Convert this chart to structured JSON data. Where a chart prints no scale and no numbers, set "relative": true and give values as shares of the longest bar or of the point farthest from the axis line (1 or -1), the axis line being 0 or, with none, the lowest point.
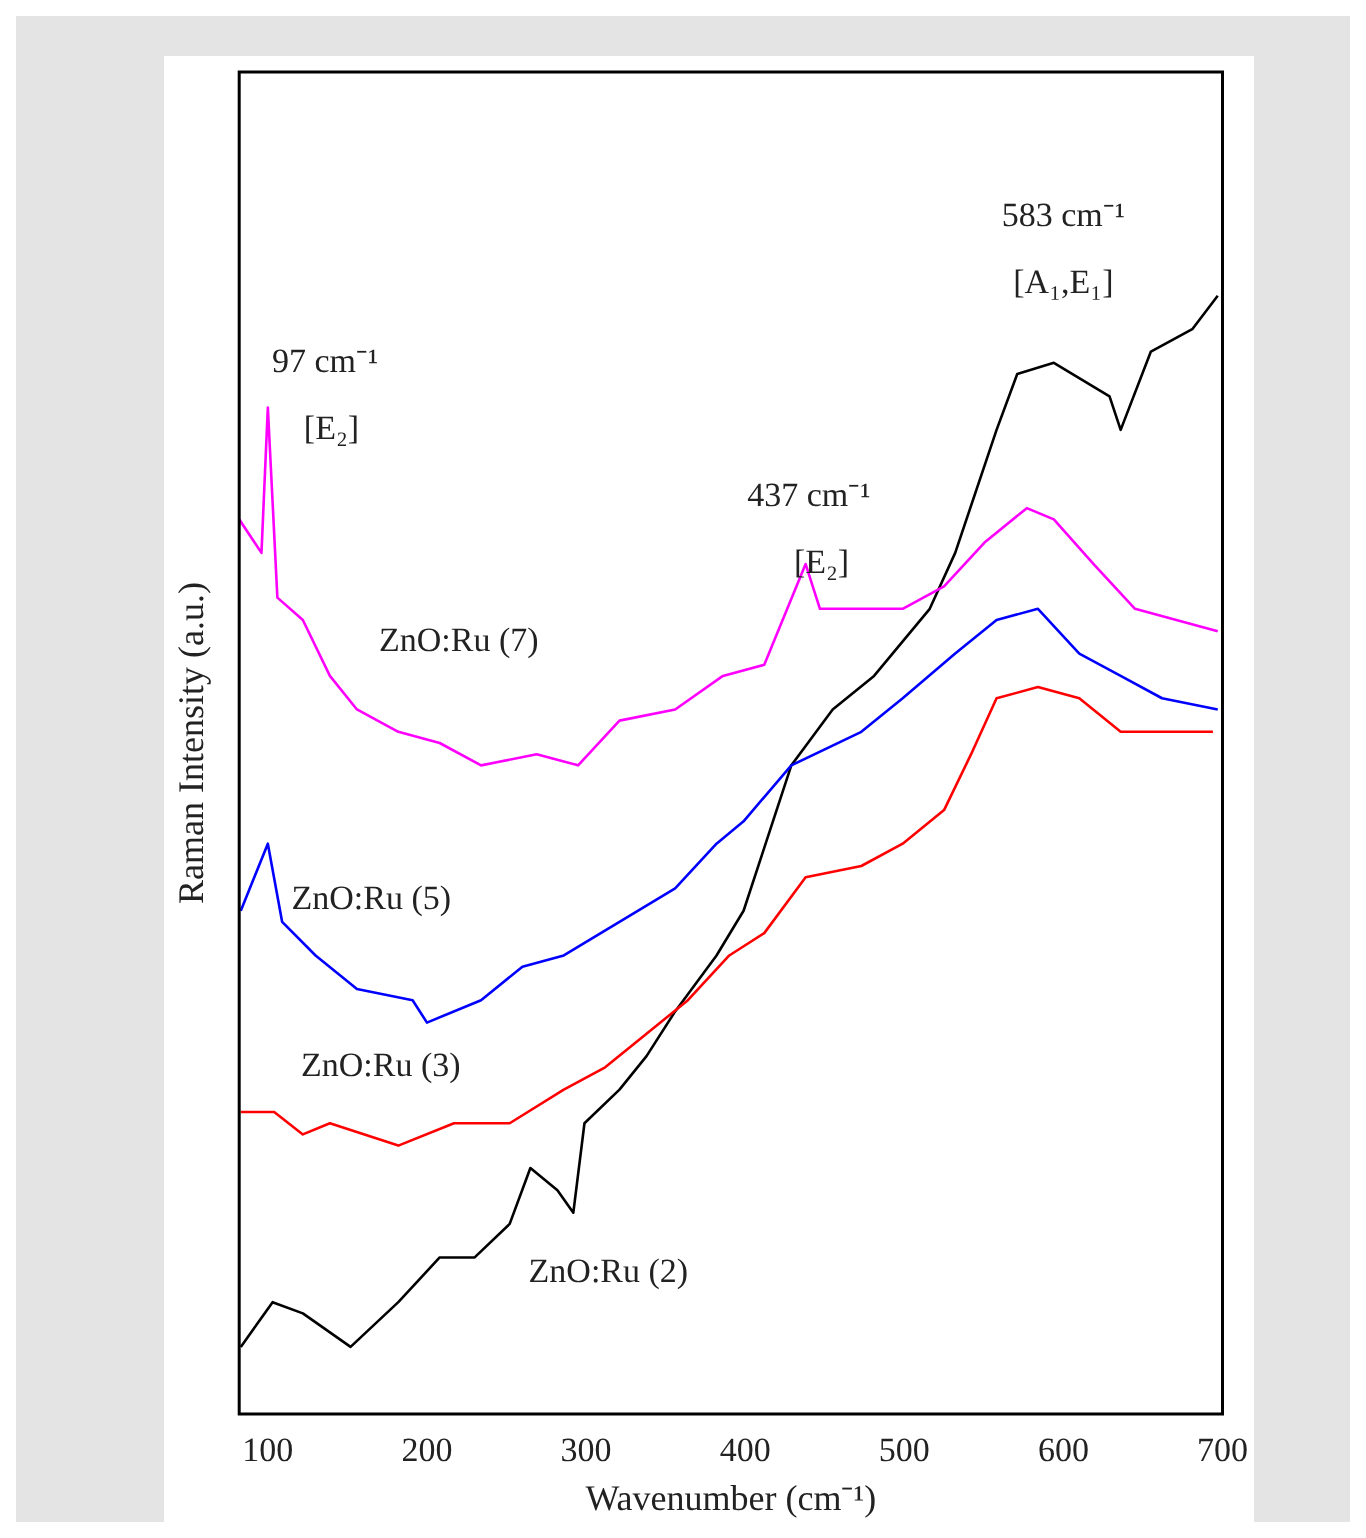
{
  "chart_data": {
    "type": "line",
    "relative": true,
    "xlabel": "Wavenumber (cm⁻¹)",
    "ylabel": "Raman Intensity (a.u.)",
    "xlim": [
      82,
      700
    ],
    "xticks": [
      100,
      200,
      300,
      400,
      500,
      600,
      700
    ],
    "grid": false,
    "legend": false,
    "marker": "none",
    "line_style": "solid",
    "series": [
      {
        "name": "ZnO:Ru (7)",
        "color": "#ff00ff",
        "x": [
          82,
          96,
          100,
          106,
          122,
          139,
          156,
          182,
          208,
          234,
          269,
          295,
          321,
          356,
          386,
          412,
          438,
          447,
          473,
          499,
          525,
          551,
          577,
          594,
          619,
          645,
          671,
          697
        ],
        "values": [
          0.8,
          0.77,
          0.9,
          0.73,
          0.71,
          0.66,
          0.63,
          0.61,
          0.6,
          0.58,
          0.59,
          0.58,
          0.62,
          0.63,
          0.66,
          0.67,
          0.76,
          0.72,
          0.72,
          0.72,
          0.74,
          0.78,
          0.81,
          0.8,
          0.76,
          0.72,
          0.71,
          0.7
        ]
      },
      {
        "name": "ZnO:Ru (5)",
        "color": "#0000ff",
        "x": [
          83,
          100,
          109,
          130,
          156,
          191,
          200,
          234,
          260,
          286,
          321,
          356,
          382,
          399,
          429,
          473,
          499,
          532,
          558,
          584,
          610,
          636,
          662,
          697
        ],
        "values": [
          0.45,
          0.51,
          0.44,
          0.41,
          0.38,
          0.37,
          0.35,
          0.37,
          0.4,
          0.41,
          0.44,
          0.47,
          0.51,
          0.53,
          0.58,
          0.61,
          0.64,
          0.68,
          0.71,
          0.72,
          0.68,
          0.66,
          0.64,
          0.63
        ]
      },
      {
        "name": "ZnO:Ru (3)",
        "color": "#ff0000",
        "x": [
          83,
          104,
          122,
          139,
          182,
          217,
          252,
          286,
          312,
          338,
          364,
          390,
          412,
          438,
          473,
          499,
          525,
          542,
          558,
          584,
          610,
          636,
          662,
          694
        ],
        "values": [
          0.27,
          0.27,
          0.25,
          0.26,
          0.24,
          0.26,
          0.26,
          0.29,
          0.31,
          0.34,
          0.37,
          0.41,
          0.43,
          0.48,
          0.49,
          0.51,
          0.54,
          0.59,
          0.64,
          0.65,
          0.64,
          0.61,
          0.61,
          0.61
        ]
      },
      {
        "name": "ZnO:Ru (2)",
        "color": "#000000",
        "x": [
          83,
          103,
          122,
          152,
          182,
          208,
          230,
          252,
          265,
          282,
          292,
          299,
          321,
          338,
          356,
          382,
          399,
          429,
          455,
          481,
          516,
          532,
          558,
          571,
          594,
          629,
          636,
          655,
          681,
          697
        ],
        "values": [
          0.06,
          0.1,
          0.09,
          0.06,
          0.1,
          0.14,
          0.14,
          0.17,
          0.22,
          0.2,
          0.18,
          0.26,
          0.29,
          0.32,
          0.36,
          0.41,
          0.45,
          0.58,
          0.63,
          0.66,
          0.72,
          0.77,
          0.88,
          0.93,
          0.94,
          0.91,
          0.88,
          0.95,
          0.97,
          1.0
        ]
      }
    ],
    "annotations": [
      "97 cm⁻¹",
      "[E₂]",
      "437 cm⁻¹",
      "[E₂]",
      "583 cm⁻¹",
      "[A₁,E₁]"
    ]
  }
}
